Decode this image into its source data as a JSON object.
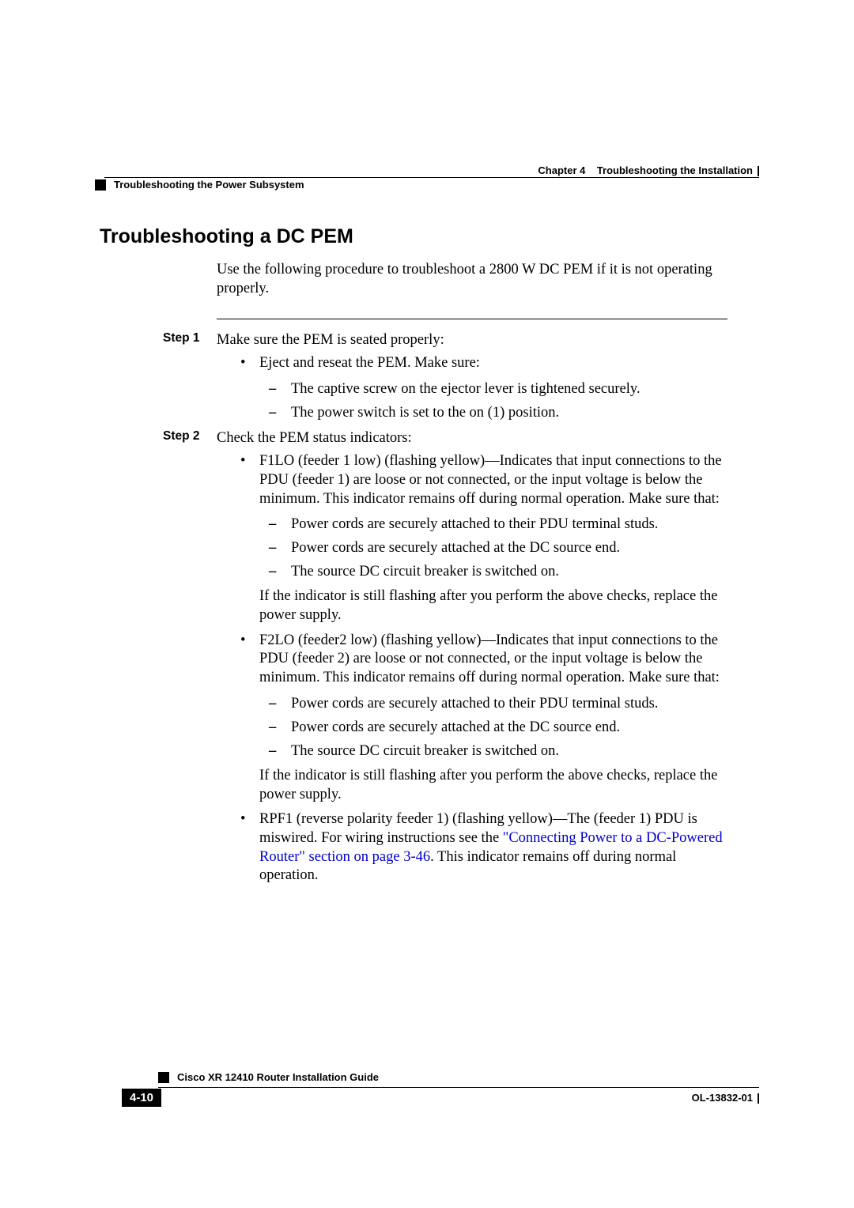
{
  "header": {
    "chapter_label": "Chapter 4",
    "chapter_title": "Troubleshooting the Installation",
    "section_breadcrumb": "Troubleshooting the Power Subsystem"
  },
  "section": {
    "title": "Troubleshooting a DC PEM",
    "intro": "Use the following procedure to troubleshoot a 2800 W DC PEM if it is not operating properly."
  },
  "steps": {
    "step1": {
      "label": "Step 1",
      "text": "Make sure the PEM is seated properly:",
      "bullets": {
        "b1": "Eject and reseat the PEM. Make sure:",
        "sub": {
          "s1": "The captive screw on the ejector lever is tightened securely.",
          "s2": "The power switch is set to the on (1) position."
        }
      }
    },
    "step2": {
      "label": "Step 2",
      "text": "Check the PEM status indicators:",
      "f1lo": {
        "text": "F1LO (feeder 1 low) (flashing yellow)—Indicates that input connections to the PDU (feeder 1) are loose or not connected, or the input voltage is below the minimum. This indicator remains off during normal operation. Make sure that:",
        "s1": "Power cords are securely attached to their PDU terminal studs.",
        "s2": "Power cords are securely attached at the DC source end.",
        "s3": "The source DC circuit breaker is switched on.",
        "after": "If the indicator is still flashing after you perform the above checks, replace the power supply."
      },
      "f2lo": {
        "text": "F2LO (feeder2 low) (flashing yellow)—Indicates that input connections to the PDU (feeder 2) are loose or not connected, or the input voltage is below the minimum. This indicator remains off during normal operation. Make sure that:",
        "s1": "Power cords are securely attached to their PDU terminal studs.",
        "s2": "Power cords are securely attached at the DC source end.",
        "s3": "The source DC circuit breaker is switched on.",
        "after": "If the indicator is still flashing after you perform the above checks, replace the power supply."
      },
      "rpf1": {
        "pre": "RPF1 (reverse polarity feeder 1) (flashing yellow)—The (feeder 1) PDU is miswired. For wiring instructions see the ",
        "link": "\"Connecting Power to a DC-Powered Router\" section on page 3-46",
        "post": ". This indicator remains off during normal operation."
      }
    }
  },
  "footer": {
    "guide_title": "Cisco XR 12410 Router Installation Guide",
    "page_number": "4-10",
    "doc_number": "OL-13832-01"
  },
  "colors": {
    "text": "#000000",
    "link": "#0000cc",
    "background": "#ffffff"
  }
}
